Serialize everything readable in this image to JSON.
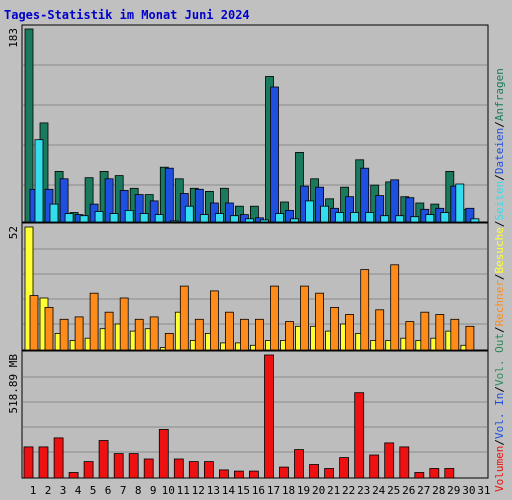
{
  "colors": {
    "anfragen": "#1a7a5e",
    "dateien": "#1f4fe0",
    "seiten": "#33ddee",
    "besuche": "#ffff33",
    "rechner": "#ff8c1a",
    "volumen": "#ee1111",
    "title": "#0000cc",
    "sep": "#000000",
    "weekend": "#2e8b57",
    "weekday": "#000000"
  },
  "chart_data": {
    "type": "bar",
    "title": "Tages-Statistik im Monat Juni 2024",
    "categories": [
      "1",
      "2",
      "3",
      "4",
      "5",
      "6",
      "7",
      "8",
      "9",
      "10",
      "11",
      "12",
      "13",
      "14",
      "15",
      "16",
      "17",
      "18",
      "19",
      "20",
      "21",
      "22",
      "23",
      "24",
      "25",
      "26",
      "27",
      "28",
      "29",
      "30",
      "31"
    ],
    "weekend_days": [
      1,
      2,
      8,
      9,
      15,
      16,
      22,
      23,
      29,
      30
    ],
    "panels": [
      {
        "key": "hits",
        "scale_label": "183",
        "ymax": 183,
        "series": [
          {
            "name": "Anfragen",
            "color_key": "anfragen",
            "values": [
              183,
              94,
              48,
              9,
              42,
              48,
              44,
              32,
              26,
              52,
              41,
              32,
              29,
              32,
              15,
              15,
              138,
              19,
              66,
              41,
              22,
              33,
              59,
              35,
              38,
              24,
              18,
              17,
              48,
              12,
              0
            ]
          },
          {
            "name": "Dateien",
            "color_key": "dateien",
            "values": [
              31,
              31,
              41,
              7,
              17,
              41,
              30,
              26,
              20,
              51,
              27,
              31,
              18,
              18,
              7,
              4,
              128,
              11,
              34,
              33,
              13,
              24,
              51,
              25,
              40,
              23,
              12,
              13,
              34,
              13,
              0
            ]
          },
          {
            "name": "Seiten",
            "color_key": "seiten",
            "values": [
              78,
              17,
              8,
              6,
              10,
              8,
              11,
              8,
              7,
              1,
              15,
              7,
              8,
              6,
              3,
              2,
              8,
              3,
              20,
              15,
              9,
              9,
              9,
              6,
              6,
              5,
              7,
              9,
              36,
              3,
              0
            ]
          }
        ]
      },
      {
        "key": "visits",
        "scale_label": "52",
        "ymax": 52,
        "series": [
          {
            "name": "Besuche",
            "color_key": "besuche",
            "values": [
              52,
              22,
              7,
              4,
              5,
              9,
              11,
              8,
              9,
              1,
              16,
              4,
              7,
              3,
              3,
              2,
              4,
              4,
              10,
              10,
              8,
              11,
              7,
              4,
              4,
              5,
              4,
              5,
              8,
              2,
              0
            ]
          },
          {
            "name": "Rechner",
            "color_key": "rechner",
            "values": [
              23,
              18,
              13,
              14,
              24,
              16,
              22,
              13,
              14,
              7,
              27,
              13,
              25,
              16,
              13,
              13,
              27,
              12,
              27,
              24,
              18,
              15,
              34,
              17,
              36,
              12,
              16,
              15,
              13,
              10,
              0
            ]
          }
        ]
      },
      {
        "key": "volume",
        "scale_label": "518.89 MB",
        "ymax": 518.89,
        "series": [
          {
            "name": "Volumen",
            "color_key": "volumen",
            "values": [
              131,
              131,
              169,
              23,
              69,
              158,
              103,
              103,
              80,
              205,
              80,
              69,
              69,
              34,
              29,
              29,
              518.89,
              46,
              120,
              57,
              40,
              86,
              360,
              97,
              148,
              131,
              23,
              40,
              40,
              0,
              0
            ]
          }
        ]
      }
    ],
    "legend": [
      {
        "label": "Volumen",
        "color_key": "volumen"
      },
      {
        "label": "Vol. In",
        "color_key": "dateien"
      },
      {
        "label": "Vol. Out",
        "color_key": "weekend"
      },
      {
        "label": "Rechner",
        "color_key": "rechner"
      },
      {
        "label": "Besuche",
        "color_key": "besuche"
      },
      {
        "label": "Seiten",
        "color_key": "seiten"
      },
      {
        "label": "Dateien",
        "color_key": "dateien"
      },
      {
        "label": "Anfragen",
        "color_key": "anfragen"
      }
    ],
    "separator": "/",
    "legend_placement": "right, vertical"
  }
}
